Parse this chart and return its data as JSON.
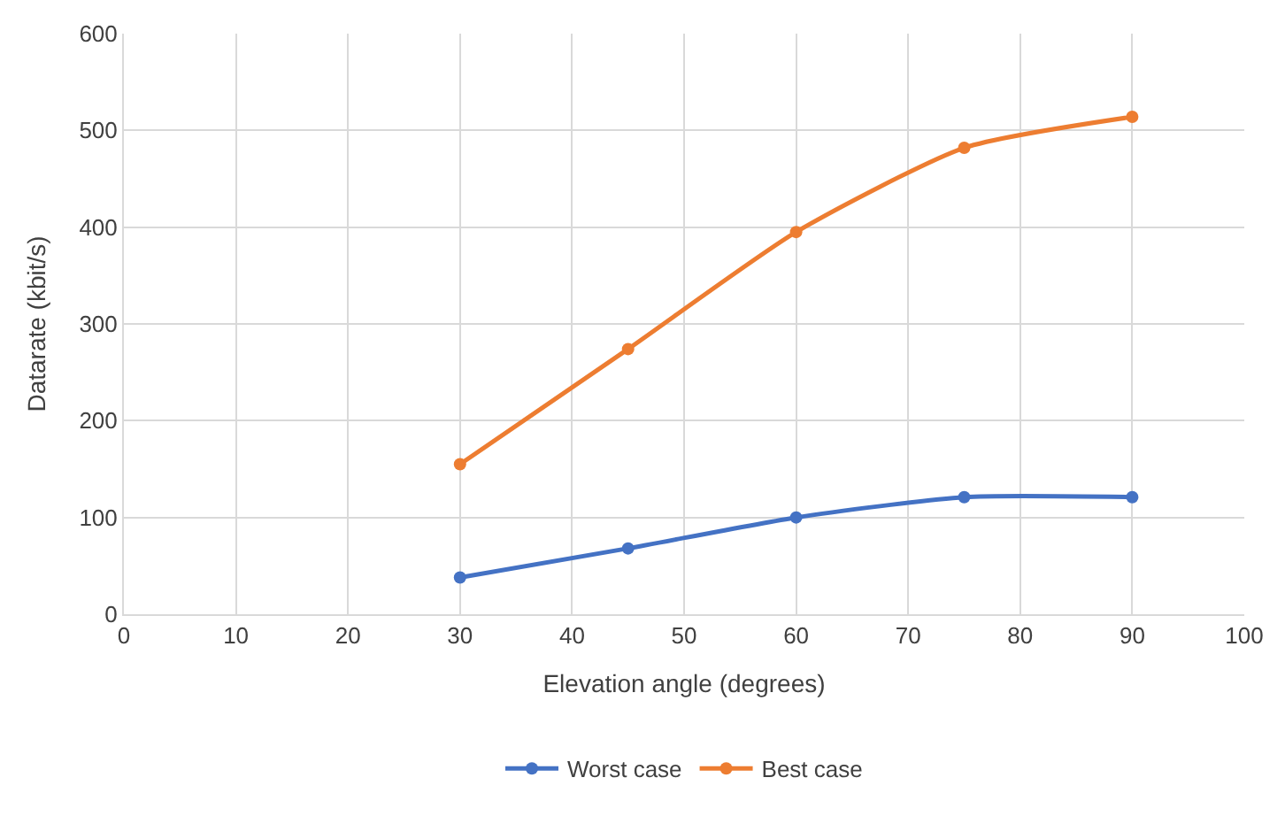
{
  "chart_data": {
    "type": "line",
    "xlabel": "Elevation angle (degrees)",
    "ylabel": "Datarate (kbit/s)",
    "x": [
      30,
      45,
      60,
      75,
      90
    ],
    "series": [
      {
        "name": "Worst case",
        "color": "#4472c4",
        "values": [
          38,
          68,
          100,
          121,
          121
        ]
      },
      {
        "name": "Best case",
        "color": "#ed7d31",
        "values": [
          155,
          274,
          395,
          482,
          514
        ]
      }
    ],
    "xlim": [
      0,
      100
    ],
    "xticks": [
      0,
      10,
      20,
      30,
      40,
      50,
      60,
      70,
      80,
      90,
      100
    ],
    "ylim": [
      0,
      600
    ],
    "yticks": [
      0,
      100,
      200,
      300,
      400,
      500,
      600
    ],
    "grid": true,
    "legend": "bottom",
    "marker": "circle",
    "line_style": "solid"
  }
}
